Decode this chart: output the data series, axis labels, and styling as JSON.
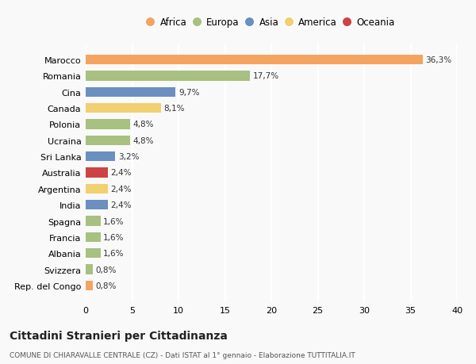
{
  "categories": [
    "Rep. del Congo",
    "Svizzera",
    "Albania",
    "Francia",
    "Spagna",
    "India",
    "Argentina",
    "Australia",
    "Sri Lanka",
    "Ucraina",
    "Polonia",
    "Canada",
    "Cina",
    "Romania",
    "Marocco"
  ],
  "values": [
    0.8,
    0.8,
    1.6,
    1.6,
    1.6,
    2.4,
    2.4,
    2.4,
    3.2,
    4.8,
    4.8,
    8.1,
    9.7,
    17.7,
    36.3
  ],
  "colors": [
    "#f4a460",
    "#a8c080",
    "#a8c080",
    "#a8c080",
    "#a8c080",
    "#6b8fbf",
    "#f0d070",
    "#cc4444",
    "#6b8fbf",
    "#a8c080",
    "#a8c080",
    "#f0d070",
    "#6b8fbf",
    "#a8c080",
    "#f4a460"
  ],
  "labels": [
    "0,8%",
    "0,8%",
    "1,6%",
    "1,6%",
    "1,6%",
    "2,4%",
    "2,4%",
    "2,4%",
    "3,2%",
    "4,8%",
    "4,8%",
    "8,1%",
    "9,7%",
    "17,7%",
    "36,3%"
  ],
  "legend": [
    {
      "label": "Africa",
      "color": "#f4a460"
    },
    {
      "label": "Europa",
      "color": "#a8c080"
    },
    {
      "label": "Asia",
      "color": "#6b8fbf"
    },
    {
      "label": "America",
      "color": "#f0d070"
    },
    {
      "label": "Oceania",
      "color": "#cc4444"
    }
  ],
  "xlim": [
    0,
    40
  ],
  "xticks": [
    0,
    5,
    10,
    15,
    20,
    25,
    30,
    35,
    40
  ],
  "title": "Cittadini Stranieri per Cittadinanza",
  "subtitle": "COMUNE DI CHIARAVALLE CENTRALE (CZ) - Dati ISTAT al 1° gennaio - Elaborazione TUTTITALIA.IT",
  "bg_color": "#f9f9f9",
  "grid_color": "#ffffff",
  "bar_height": 0.6
}
